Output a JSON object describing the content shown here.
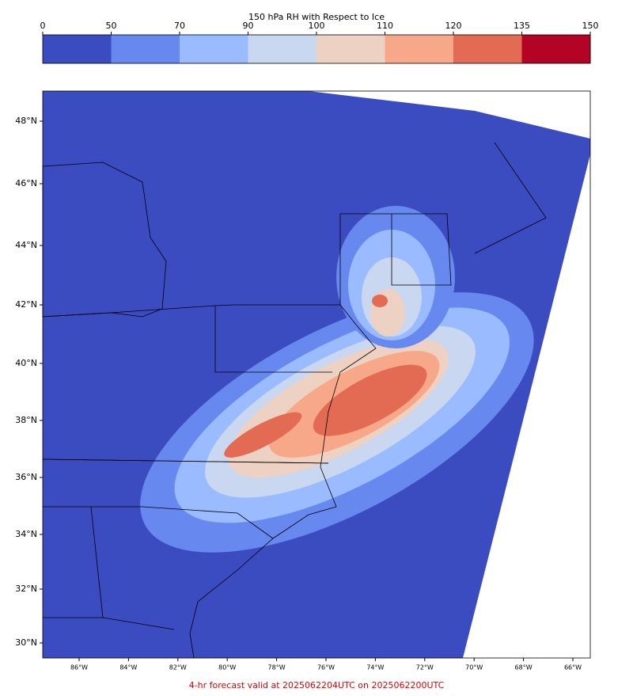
{
  "colorbar": {
    "title": "150 hPa RH with Respect to Ice",
    "ticks": [
      0,
      50,
      70,
      90,
      100,
      110,
      120,
      135,
      150
    ],
    "colors": [
      "#3b4cc0",
      "#6788ee",
      "#9abbff",
      "#c9d7f0",
      "#edd1c2",
      "#f7a889",
      "#e36a53",
      "#b40426"
    ]
  },
  "map": {
    "lat_labels": [
      {
        "value": 48,
        "label": "48°N"
      },
      {
        "value": 46,
        "label": "46°N"
      },
      {
        "value": 44,
        "label": "44°N"
      },
      {
        "value": 42,
        "label": "42°N"
      },
      {
        "value": 40,
        "label": "40°N"
      },
      {
        "value": 38,
        "label": "38°N"
      },
      {
        "value": 36,
        "label": "36°N"
      },
      {
        "value": 34,
        "label": "34°N"
      },
      {
        "value": 32,
        "label": "32°N"
      },
      {
        "value": 30,
        "label": "30°N"
      }
    ],
    "lon_labels": [
      {
        "value": -86,
        "label": "86°W"
      },
      {
        "value": -84,
        "label": "84°W"
      },
      {
        "value": -82,
        "label": "82°W"
      },
      {
        "value": -80,
        "label": "80°W"
      },
      {
        "value": -78,
        "label": "78°W"
      },
      {
        "value": -76,
        "label": "76°W"
      },
      {
        "value": -74,
        "label": "74°W"
      },
      {
        "value": -72,
        "label": "72°W"
      },
      {
        "value": -70,
        "label": "70°W"
      },
      {
        "value": -68,
        "label": "68°W"
      },
      {
        "value": -66,
        "label": "66°W"
      }
    ]
  },
  "footer": "4-hr forecast valid at 2025062204UTC on 2025062200UTC"
}
